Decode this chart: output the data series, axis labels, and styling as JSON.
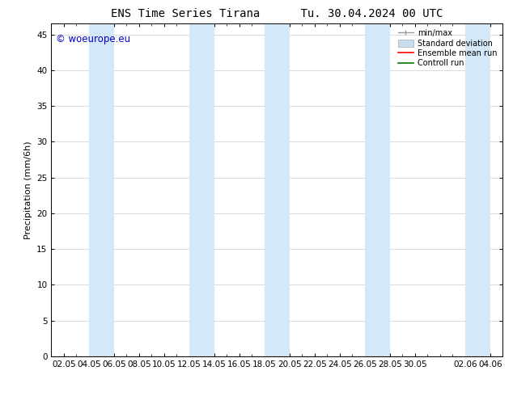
{
  "title_left": "ENS Time Series Tirana",
  "title_right": "Tu. 30.04.2024 00 UTC",
  "ylabel": "Precipitation (mm/6h)",
  "watermark": "© woeurope.eu",
  "watermark_color": "#0000cc",
  "background_color": "#ffffff",
  "plot_bg_color": "#ffffff",
  "ylim": [
    0,
    46.5
  ],
  "yticks": [
    0,
    5,
    10,
    15,
    20,
    25,
    30,
    35,
    40,
    45
  ],
  "shade_band_color": "#d4e8f8",
  "shade_bands": [
    [
      3,
      5
    ],
    [
      11,
      13
    ],
    [
      17,
      19
    ],
    [
      25,
      27
    ],
    [
      33,
      35
    ]
  ],
  "xtick_labels": [
    "02.05",
    "04.05",
    "06.05",
    "08.05",
    "10.05",
    "12.05",
    "14.05",
    "16.05",
    "18.05",
    "20.05",
    "22.05",
    "24.05",
    "26.05",
    "28.05",
    "30.05",
    "02.06",
    "04.06"
  ],
  "xtick_positions": [
    1,
    3,
    5,
    7,
    9,
    11,
    13,
    15,
    17,
    19,
    21,
    23,
    25,
    27,
    29,
    33,
    35
  ],
  "xlim": [
    0,
    36
  ],
  "legend_labels": [
    "min/max",
    "Standard deviation",
    "Ensemble mean run",
    "Controll run"
  ],
  "minmax_color": "#999999",
  "std_color": "#c8ddf0",
  "ensemble_color": "#ff0000",
  "control_color": "#007700",
  "title_fontsize": 10,
  "axis_fontsize": 8,
  "tick_fontsize": 7.5
}
